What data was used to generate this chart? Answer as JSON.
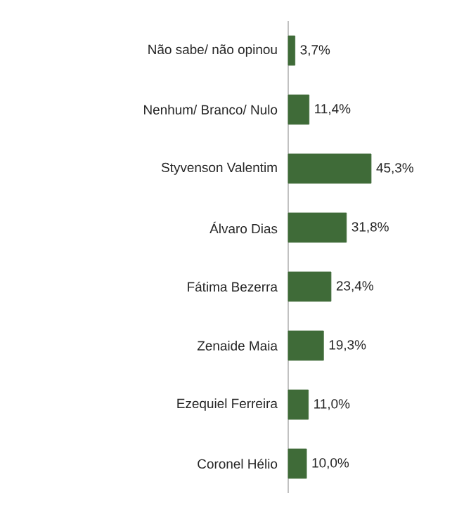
{
  "chart_data": {
    "type": "bar",
    "orientation": "horizontal",
    "categories": [
      "Não sabe/ não opinou",
      "Nenhum/ Branco/ Nulo",
      "Styvenson Valentim",
      "Álvaro Dias",
      "Fátima Bezerra",
      "Zenaide Maia",
      "Ezequiel Ferreira",
      "Coronel Hélio"
    ],
    "values": [
      3.7,
      11.4,
      45.3,
      31.8,
      23.4,
      19.3,
      11.0,
      10.0
    ],
    "value_labels": [
      "3,7%",
      "11,4%",
      "45,3%",
      "31,8%",
      "23,4%",
      "19,3%",
      "11,0%",
      "10,0%"
    ],
    "color": "#3f6b38"
  }
}
